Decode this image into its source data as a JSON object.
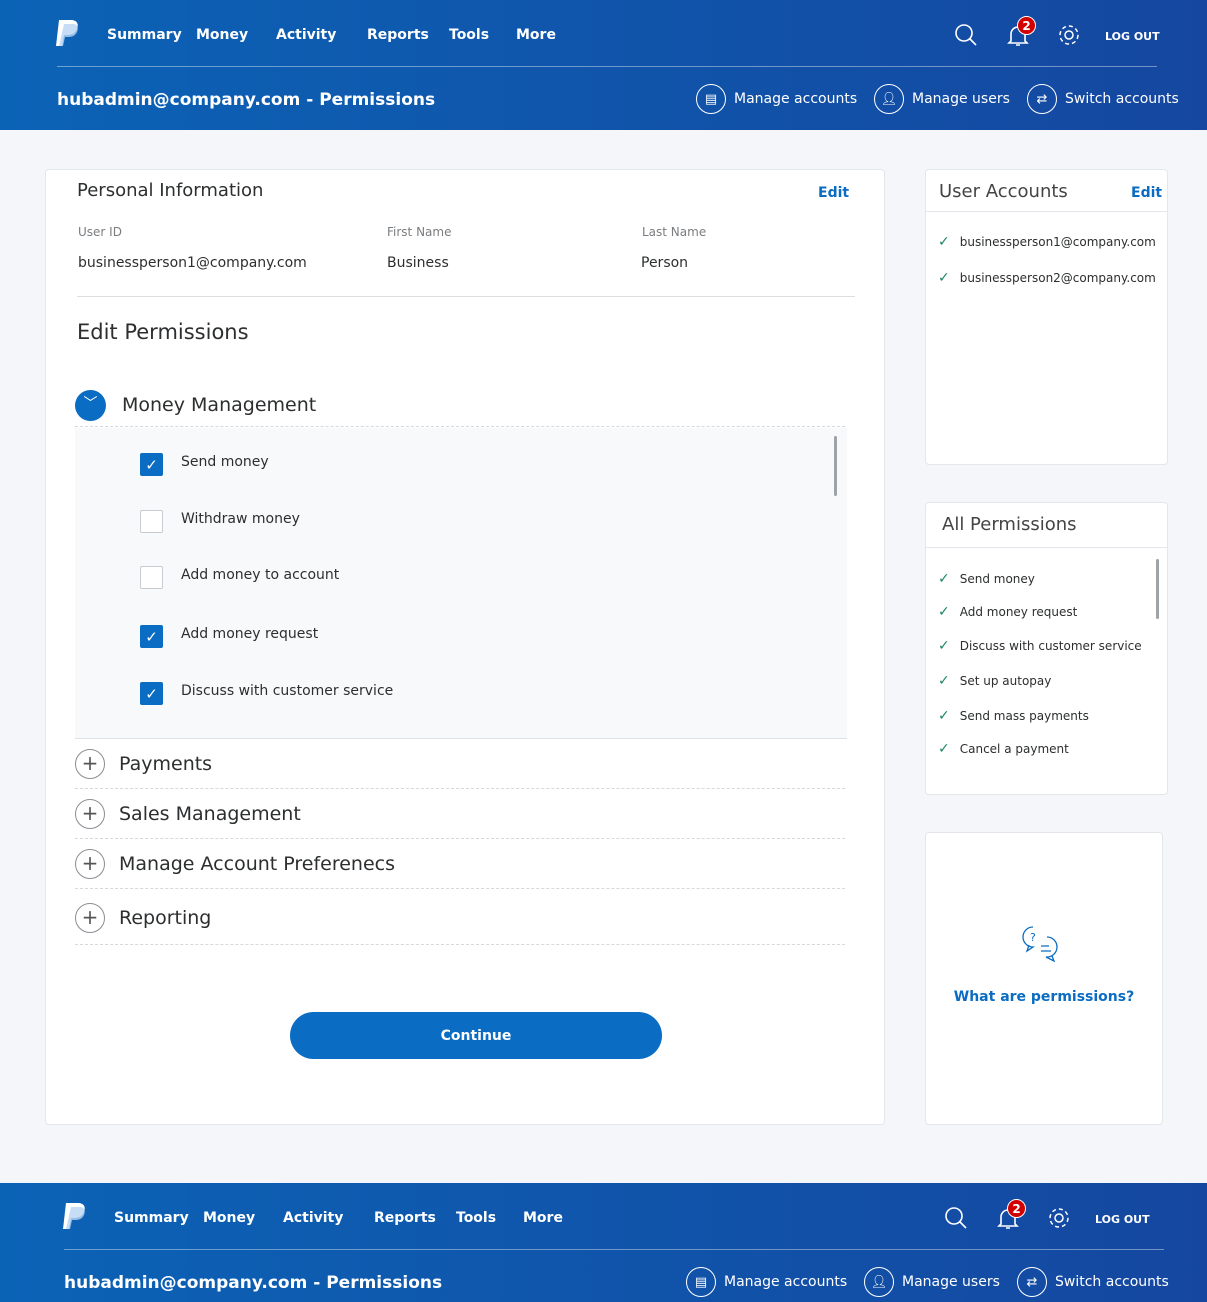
{
  "header": {
    "nav": [
      "Summary",
      "Money",
      "Activity",
      "Reports",
      "Tools",
      "More"
    ],
    "notifications": "2",
    "logout": "LOG OUT",
    "title": "hubadmin@company.com - Permissions",
    "links": [
      "Manage accounts",
      "Manage users",
      "Switch accounts"
    ]
  },
  "personal": {
    "title": "Personal Information",
    "edit": "Edit",
    "fields": [
      {
        "label": "User ID",
        "value": "businessperson1@company.com"
      },
      {
        "label": "First Name",
        "value": "Business"
      },
      {
        "label": "Last Name",
        "value": "Person"
      }
    ]
  },
  "permissions": {
    "title": "Edit Permissions",
    "open_section": "Money Management",
    "items": [
      {
        "label": "Send money",
        "checked": true
      },
      {
        "label": "Withdraw money",
        "checked": false
      },
      {
        "label": "Add money to account",
        "checked": false
      },
      {
        "label": "Add money request",
        "checked": true
      },
      {
        "label": "Discuss with customer service",
        "checked": true
      }
    ],
    "sections": [
      "Payments",
      "Sales Management",
      "Manage Account Preferenecs",
      "Reporting"
    ],
    "continue": "Continue"
  },
  "user_accounts": {
    "title": "User Accounts",
    "edit": "Edit",
    "items": [
      "businessperson1@company.com",
      "businessperson2@company.com"
    ]
  },
  "all_permissions": {
    "title": "All Permissions",
    "items": [
      "Send money",
      "Add money request",
      "Discuss with customer service",
      "Set up autopay",
      "Send mass payments",
      "Cancel a payment"
    ]
  },
  "help": {
    "link": "What are permissions?"
  },
  "colors": {
    "brand": "#0a6cc2",
    "header": "#0b63b6",
    "check": "#1a8a5a",
    "badge": "#d20000"
  }
}
